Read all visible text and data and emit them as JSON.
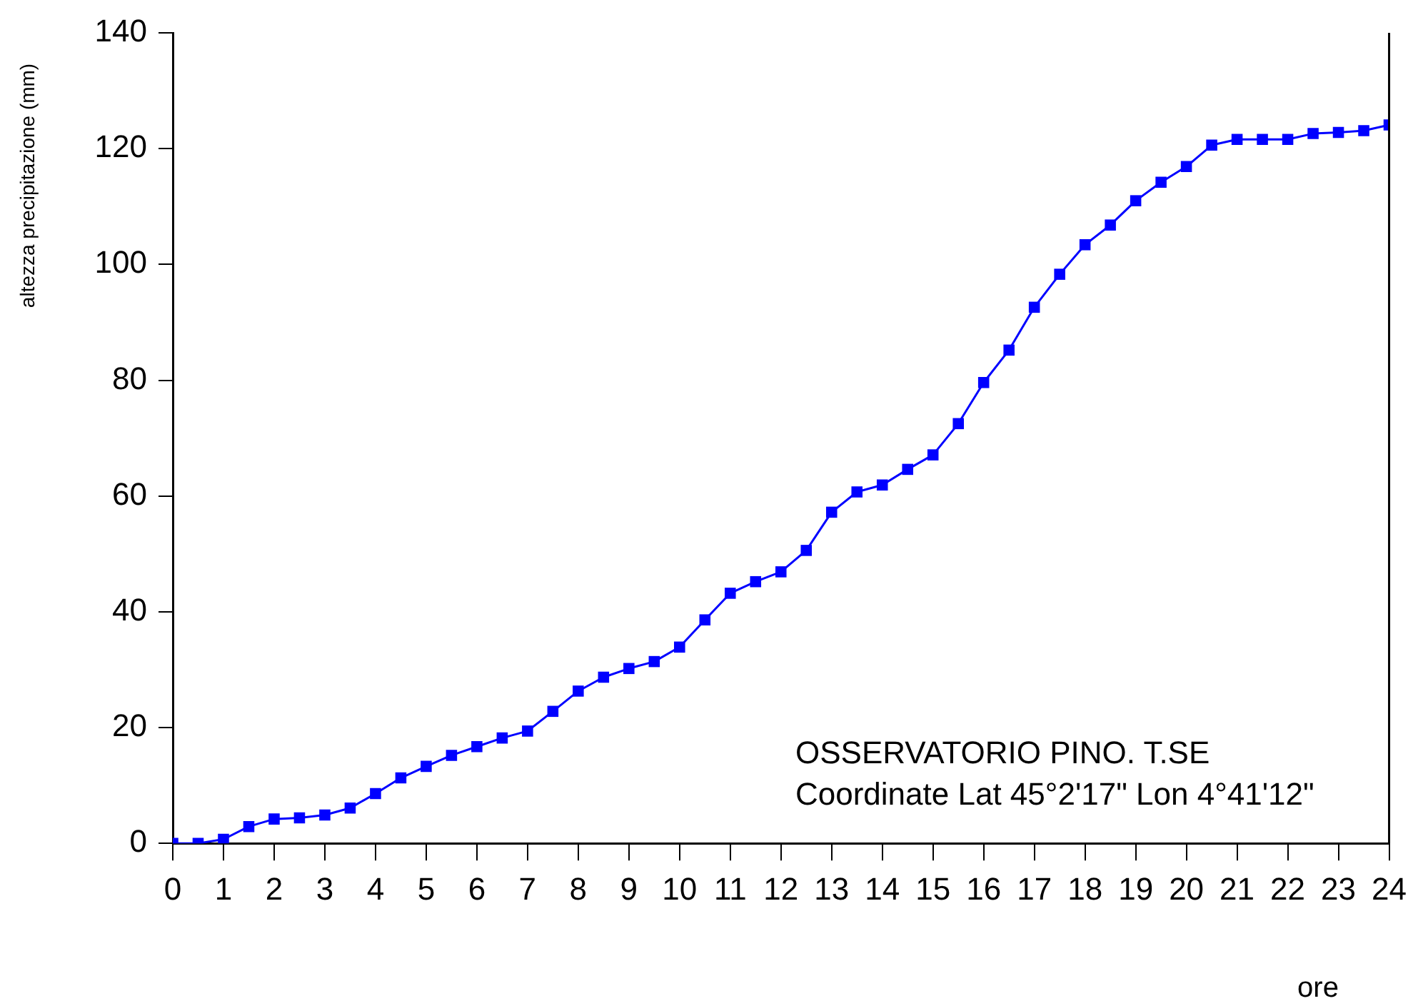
{
  "chart_data": {
    "type": "line",
    "xlabel": "ore",
    "ylabel": "altezza precipitazione (mm)",
    "annotations": [
      "OSSERVATORIO PINO. T.SE",
      "Coordinate Lat 45°2'17\" Lon 4°41'12\""
    ],
    "x": [
      0,
      0.5,
      1,
      1.5,
      2,
      2.5,
      3,
      3.5,
      4,
      4.5,
      5,
      5.5,
      6,
      6.5,
      7,
      7.5,
      8,
      8.5,
      9,
      9.5,
      10,
      10.5,
      11,
      11.5,
      12,
      12.5,
      13,
      13.5,
      14,
      14.5,
      15,
      15.5,
      16,
      16.5,
      17,
      17.5,
      18,
      18.5,
      19,
      19.5,
      20,
      20.5,
      21,
      21.5,
      22,
      22.5,
      23,
      23.5,
      24
    ],
    "series": [
      {
        "color": "#0000ff",
        "values": [
          0,
          0,
          0.7,
          2.9,
          4.2,
          4.4,
          4.9,
          6.1,
          8.6,
          11.3,
          13.3,
          15.2,
          16.7,
          18.2,
          19.4,
          22.8,
          26.3,
          28.7,
          30.2,
          31.4,
          33.9,
          38.6,
          43.2,
          45.2,
          46.9,
          50.6,
          57.2,
          60.7,
          61.9,
          64.6,
          67.1,
          72.5,
          79.6,
          85.2,
          92.6,
          98.3,
          103.4,
          106.8,
          111,
          114.2,
          116.9,
          120.6,
          121.6,
          121.6,
          121.6,
          122.6,
          122.8,
          123.1,
          124.1
        ]
      }
    ],
    "xlim": [
      0,
      24
    ],
    "xticks": [
      0,
      1,
      2,
      3,
      4,
      5,
      6,
      7,
      8,
      9,
      10,
      11,
      12,
      13,
      14,
      15,
      16,
      17,
      18,
      19,
      20,
      21,
      22,
      23,
      24
    ],
    "ylim": [
      0,
      140
    ],
    "yticks": [
      0,
      20,
      40,
      60,
      80,
      100,
      120,
      140
    ],
    "grid": false,
    "legend": false,
    "marker": "square",
    "line_style": "solid"
  }
}
